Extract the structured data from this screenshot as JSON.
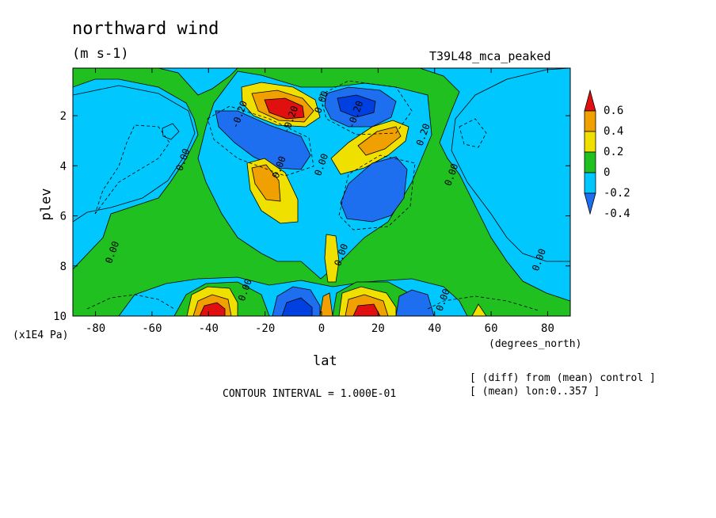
{
  "header": {
    "title": "northward wind",
    "units": "(m s-1)",
    "experiment": "T39L48_mca_peaked"
  },
  "footer": {
    "contour_interval": "CONTOUR INTERVAL = 1.000E-01",
    "note_diff": "[ (diff) from (mean) control ]",
    "note_mean": "[ (mean) lon:0..357 ]"
  },
  "chart_data": {
    "type": "heatmap",
    "title": "northward wind",
    "subtitle": "(m s-1)",
    "xlabel": "lat",
    "xunits": "(degrees_north)",
    "ylabel": "plev",
    "yunits": "(x1E4 Pa)",
    "xlim": [
      -88,
      88
    ],
    "ylim": [
      10,
      0.1
    ],
    "x_ticks": [
      -80,
      -60,
      -40,
      -20,
      0,
      20,
      40,
      60,
      80
    ],
    "x_tick_labels": [
      "-80",
      "-60",
      "-40",
      "-20",
      "0",
      "20",
      "40",
      "60",
      "80"
    ],
    "y_ticks": [
      2,
      4,
      6,
      8,
      10
    ],
    "y_tick_labels": [
      "2",
      "4",
      "6",
      "8",
      "10"
    ],
    "contour_interval": 0.1,
    "legend": {
      "placement": "right",
      "labels": [
        "0.6",
        "0.4",
        "0.2",
        "0",
        "-0.2",
        "-0.4"
      ],
      "levels": [
        -0.4,
        -0.2,
        0,
        0.2,
        0.4,
        0.6
      ],
      "colors": [
        "#1e6ff0",
        "#00c8ff",
        "#20c020",
        "#f0e000",
        "#f0a000",
        "#e01010"
      ]
    },
    "contour_labels": [
      {
        "text": "-0.20",
        "x": -28,
        "y": 2.0
      },
      {
        "text": "-0.20",
        "x": -10,
        "y": 2.2
      },
      {
        "text": "-0.20",
        "x": 13,
        "y": 2.0
      },
      {
        "text": "0.20",
        "x": 37,
        "y": 2.8
      },
      {
        "text": "0.00",
        "x": -48,
        "y": 3.8
      },
      {
        "text": "0.00",
        "x": -14,
        "y": 4.1
      },
      {
        "text": "0.00",
        "x": 1,
        "y": 1.5
      },
      {
        "text": "0.00",
        "x": 1,
        "y": 4.0
      },
      {
        "text": "0.00",
        "x": 47,
        "y": 4.4
      },
      {
        "text": "0.00",
        "x": -73,
        "y": 7.5
      },
      {
        "text": "0.00",
        "x": 78,
        "y": 7.8
      },
      {
        "text": "0.00",
        "x": 8,
        "y": 7.6
      },
      {
        "text": "0.00",
        "x": -26,
        "y": 9.0
      },
      {
        "text": "0.00",
        "x": 44,
        "y": 9.4
      }
    ],
    "features": [
      {
        "lat": -15,
        "plev": 1.8,
        "value": 0.6
      },
      {
        "lat": 17,
        "plev": 2.7,
        "value": 0.5
      },
      {
        "lat": -15,
        "plev": 3.2,
        "value": -0.4
      },
      {
        "lat": 17,
        "plev": 1.7,
        "value": -0.4
      },
      {
        "lat": -21,
        "plev": 5.0,
        "value": 0.4
      },
      {
        "lat": 24,
        "plev": 4.8,
        "value": -0.4
      },
      {
        "lat": 4,
        "plev": 7.8,
        "value": 0.4
      },
      {
        "lat": -38,
        "plev": 9.6,
        "value": 0.6
      },
      {
        "lat": 15,
        "plev": 9.6,
        "value": 0.6
      },
      {
        "lat": -10,
        "plev": 9.5,
        "value": -0.4
      },
      {
        "lat": 28,
        "plev": 9.6,
        "value": -0.4
      }
    ]
  }
}
